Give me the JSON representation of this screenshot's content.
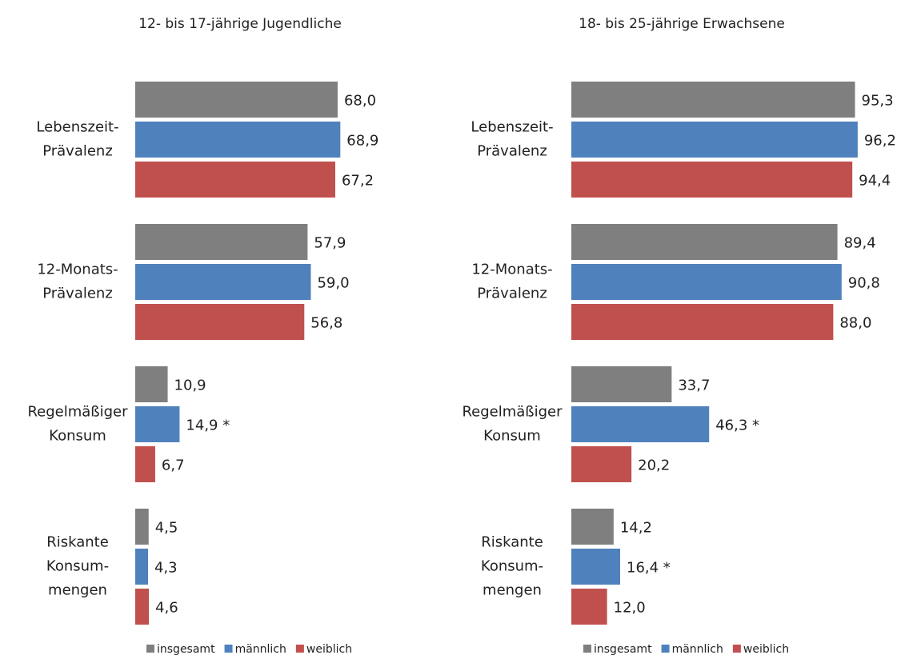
{
  "chart_data": [
    {
      "type": "bar",
      "orientation": "horizontal",
      "title": "12- bis 17-jährige Jugendliche",
      "categories": [
        [
          "Lebenszeit-",
          "Prävalenz"
        ],
        [
          "12-Monats-",
          "Prävalenz"
        ],
        [
          "Regelmäßiger",
          "Konsum"
        ],
        [
          "Riskante",
          "Konsum-",
          "mengen"
        ]
      ],
      "xlim": [
        0,
        100
      ],
      "legend": "bottom",
      "series": [
        {
          "name": "insgesamt",
          "color": "#7f7f7f",
          "values": [
            68.0,
            57.9,
            10.9,
            4.5
          ],
          "value_labels": [
            "68,0",
            "57,9",
            "10,9",
            "4,5"
          ]
        },
        {
          "name": "männlich",
          "color": "#4f81bd",
          "values": [
            68.9,
            59.0,
            14.9,
            4.3
          ],
          "value_labels": [
            "68,9",
            "59,0",
            "14,9 *",
            "4,3"
          ]
        },
        {
          "name": "weiblich",
          "color": "#c0504d",
          "values": [
            67.2,
            56.8,
            6.7,
            4.6
          ],
          "value_labels": [
            "67,2",
            "56,8",
            "6,7",
            "4,6"
          ]
        }
      ]
    },
    {
      "type": "bar",
      "orientation": "horizontal",
      "title": "18- bis 25-jährige Erwachsene",
      "categories": [
        [
          "Lebenszeit-",
          "Prävalenz"
        ],
        [
          "12-Monats-",
          "Prävalenz"
        ],
        [
          "Regelmäßiger",
          "Konsum"
        ],
        [
          "Riskante",
          "Konsum-",
          "mengen"
        ]
      ],
      "xlim": [
        0,
        100
      ],
      "legend": "bottom",
      "series": [
        {
          "name": "insgesamt",
          "color": "#7f7f7f",
          "values": [
            95.3,
            89.4,
            33.7,
            14.2
          ],
          "value_labels": [
            "95,3",
            "89,4",
            "33,7",
            "14,2"
          ]
        },
        {
          "name": "männlich",
          "color": "#4f81bd",
          "values": [
            96.2,
            90.8,
            46.3,
            16.4
          ],
          "value_labels": [
            "96,2",
            "90,8",
            "46,3 *",
            "16,4 *"
          ]
        },
        {
          "name": "weiblich",
          "color": "#c0504d",
          "values": [
            94.4,
            88.0,
            20.2,
            12.0
          ],
          "value_labels": [
            "94,4",
            "88,0",
            "20,2",
            "12,0"
          ]
        }
      ]
    }
  ]
}
